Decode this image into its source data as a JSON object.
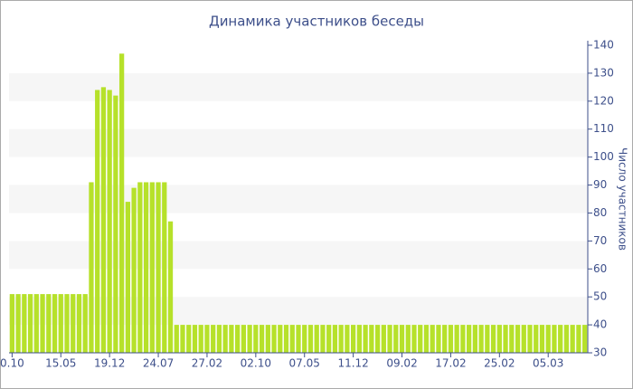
{
  "chart_data": {
    "type": "bar",
    "title": "Динамика участников беседы",
    "y_label": "Число участников",
    "categories": [
      "0.10",
      null,
      null,
      null,
      null,
      null,
      null,
      null,
      "15.05",
      null,
      null,
      null,
      null,
      null,
      null,
      null,
      "19.12",
      null,
      null,
      null,
      null,
      null,
      null,
      null,
      "24.07",
      null,
      null,
      null,
      null,
      null,
      null,
      null,
      "27.02",
      null,
      null,
      null,
      null,
      null,
      null,
      null,
      "02.10",
      null,
      null,
      null,
      null,
      null,
      null,
      null,
      "07.05",
      null,
      null,
      null,
      null,
      null,
      null,
      null,
      "11.12",
      null,
      null,
      null,
      null,
      null,
      null,
      null,
      "09.02",
      null,
      null,
      null,
      null,
      null,
      null,
      null,
      "17.02",
      null,
      null,
      null,
      null,
      null,
      null,
      null,
      "25.02",
      null,
      null,
      null,
      null,
      null,
      null,
      null,
      "05.03",
      null,
      null,
      null,
      null,
      null,
      null
    ],
    "values": [
      51,
      51,
      51,
      51,
      51,
      51,
      51,
      51,
      51,
      51,
      51,
      51,
      51,
      91,
      124,
      125,
      124,
      122,
      137,
      84,
      89,
      91,
      91,
      91,
      91,
      91,
      77,
      40,
      40,
      40,
      40,
      40,
      40,
      40,
      40,
      40,
      40,
      40,
      40,
      40,
      40,
      40,
      40,
      40,
      40,
      40,
      40,
      40,
      40,
      40,
      40,
      40,
      40,
      40,
      40,
      40,
      40,
      40,
      40,
      40,
      40,
      40,
      40,
      40,
      40,
      40,
      40,
      40,
      40,
      40,
      40,
      40,
      40,
      40,
      40,
      40,
      40,
      40,
      40,
      40,
      40,
      40,
      40,
      40,
      40,
      40,
      40,
      40,
      40,
      40,
      40,
      40,
      40,
      40,
      40
    ],
    "color": "#b6e12a",
    "ylim": [
      30,
      140
    ],
    "yticks": [
      30,
      40,
      50,
      60,
      70,
      80,
      90,
      100,
      110,
      120,
      130,
      140
    ],
    "grid": "bands",
    "y_axis_side": "right"
  }
}
